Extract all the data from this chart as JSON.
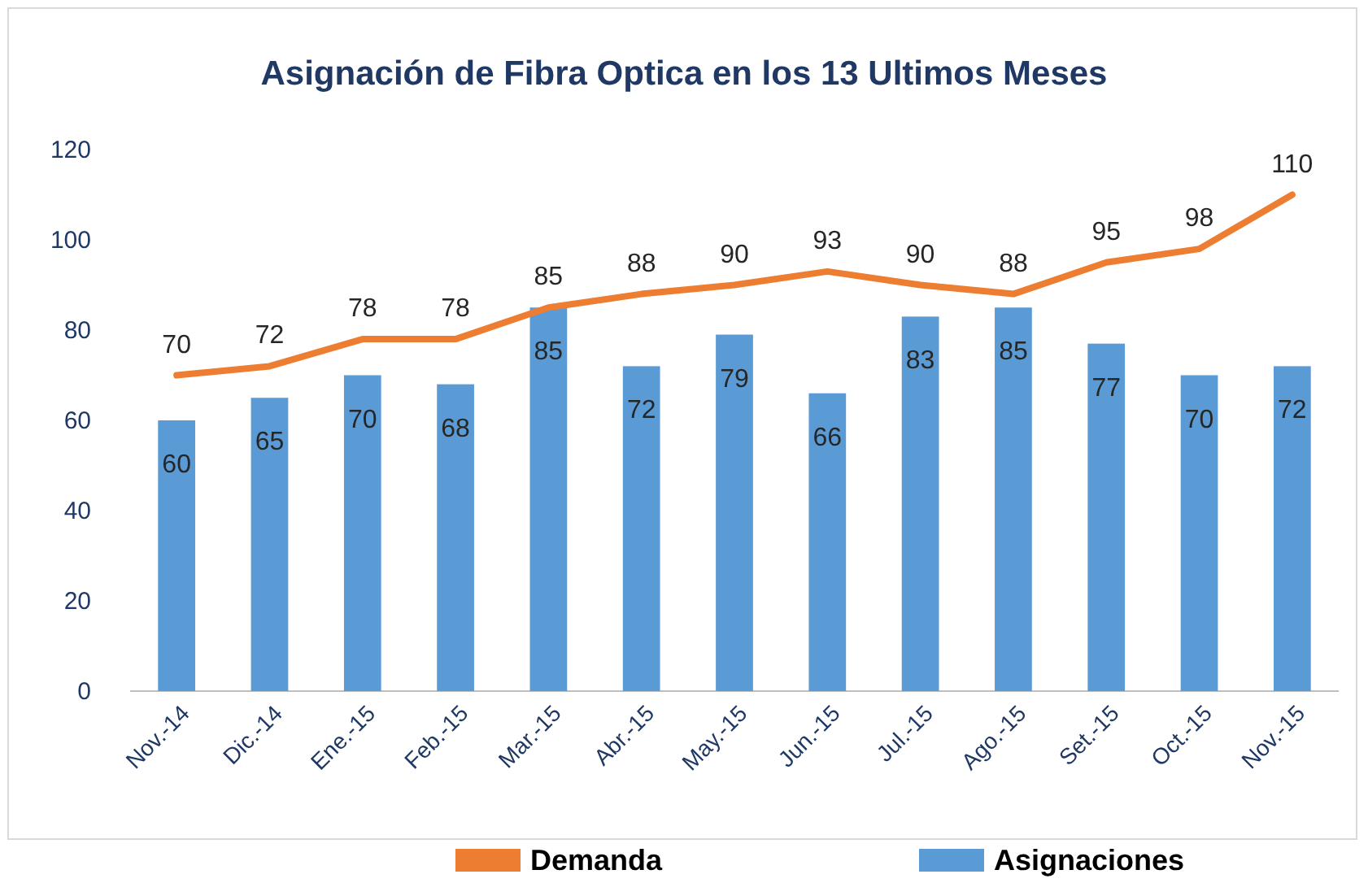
{
  "chart_data": {
    "type": "bar",
    "title": "Asignación de Fibra Optica en los 13 Ultimos Meses",
    "categories": [
      "Nov.-14",
      "Dic.-14",
      "Ene.-15",
      "Feb.-15",
      "Mar.-15",
      "Abr.-15",
      "May.-15",
      "Jun.-15",
      "Jul.-15",
      "Ago.-15",
      "Set.-15",
      "Oct.-15",
      "Nov.-15"
    ],
    "series": [
      {
        "name": "Demanda",
        "type": "line",
        "color": "#ed7d31",
        "values": [
          70,
          72,
          78,
          78,
          85,
          88,
          90,
          93,
          90,
          88,
          95,
          98,
          110
        ]
      },
      {
        "name": "Asignaciones",
        "color": "#5b9bd5",
        "values": [
          60,
          65,
          70,
          68,
          85,
          72,
          79,
          66,
          83,
          85,
          77,
          70,
          72
        ]
      }
    ],
    "ylim": [
      0,
      120
    ],
    "yticks": [
      0,
      20,
      40,
      60,
      80,
      100,
      120
    ],
    "grid": false,
    "legend": "bottom",
    "data_labels": true,
    "marker": "none"
  }
}
